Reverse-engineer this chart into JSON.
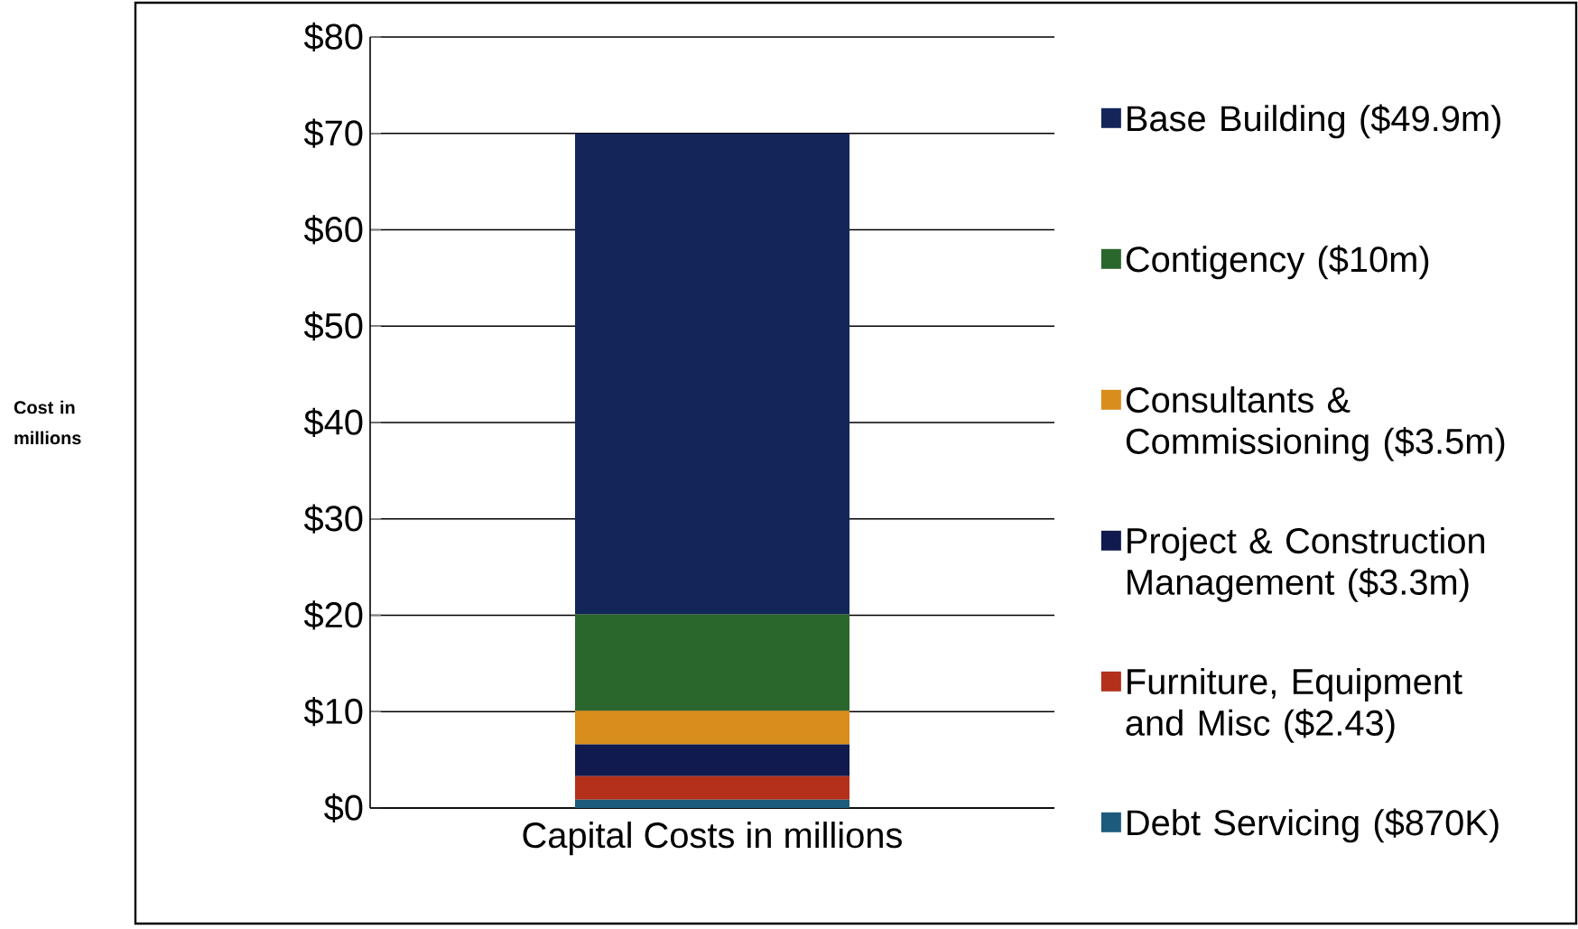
{
  "chart_data": {
    "type": "bar",
    "stacked": true,
    "annotations": [
      "Cost in millions"
    ],
    "categories": [
      "Capital Costs in millions"
    ],
    "series": [
      {
        "name": "Debt Servicing ($870K)",
        "color": "#1d5b7c",
        "values": [
          0.87
        ]
      },
      {
        "name": "Furniture, Equipment and Misc ($2.43)",
        "color": "#b3301b",
        "values": [
          2.43
        ]
      },
      {
        "name": "Project & Construction Management ($3.3m)",
        "color": "#111a4e",
        "values": [
          3.3
        ]
      },
      {
        "name": "Consultants & Commissioning ($3.5m)",
        "color": "#d88d1c",
        "values": [
          3.5
        ]
      },
      {
        "name": "Contigency ($10m)",
        "color": "#2a672c",
        "values": [
          10
        ]
      },
      {
        "name": "Base Building ($49.9m)",
        "color": "#13265a",
        "values": [
          49.9
        ]
      }
    ],
    "ylim": [
      0,
      80
    ],
    "yticks": [
      {
        "value": 0,
        "label": "$0"
      },
      {
        "value": 10,
        "label": "$10"
      },
      {
        "value": 20,
        "label": "$20"
      },
      {
        "value": 30,
        "label": "$30"
      },
      {
        "value": 40,
        "label": "$40"
      },
      {
        "value": 50,
        "label": "$50"
      },
      {
        "value": 60,
        "label": "$60"
      },
      {
        "value": 70,
        "label": "$70"
      },
      {
        "value": 80,
        "label": "$80"
      }
    ],
    "grid": "y",
    "legend": "right"
  }
}
